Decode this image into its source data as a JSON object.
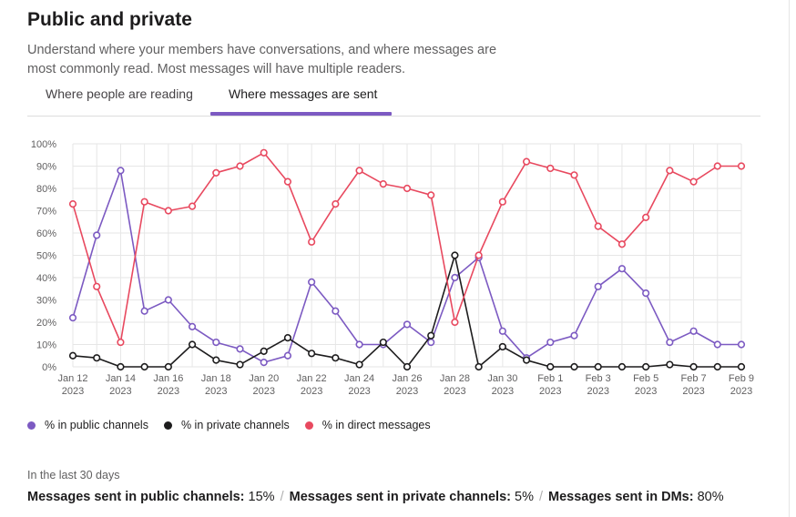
{
  "header": {
    "title": "Public and private",
    "subtitle": "Understand where your members have conversations, and where messages are most commonly read. Most messages will have multiple readers."
  },
  "tabs": [
    {
      "label": "Where people are reading",
      "active": false
    },
    {
      "label": "Where messages are sent",
      "active": true
    }
  ],
  "colors": {
    "public": "#7c5ac2",
    "private": "#1d1c1d",
    "dm": "#e8495f",
    "accent": "#7c5ac2"
  },
  "chart_data": {
    "type": "line",
    "x": [
      "Jan 12 2023",
      "Jan 13 2023",
      "Jan 14 2023",
      "Jan 15 2023",
      "Jan 16 2023",
      "Jan 17 2023",
      "Jan 18 2023",
      "Jan 19 2023",
      "Jan 20 2023",
      "Jan 21 2023",
      "Jan 22 2023",
      "Jan 23 2023",
      "Jan 24 2023",
      "Jan 25 2023",
      "Jan 26 2023",
      "Jan 27 2023",
      "Jan 28 2023",
      "Jan 29 2023",
      "Jan 30 2023",
      "Jan 31 2023",
      "Feb 1 2023",
      "Feb 2 2023",
      "Feb 3 2023",
      "Feb 4 2023",
      "Feb 5 2023",
      "Feb 6 2023",
      "Feb 7 2023",
      "Feb 8 2023",
      "Feb 9 2023"
    ],
    "tick_labels": [
      [
        "Jan 12",
        "2023"
      ],
      [
        "Jan 14",
        "2023"
      ],
      [
        "Jan 16",
        "2023"
      ],
      [
        "Jan 18",
        "2023"
      ],
      [
        "Jan 20",
        "2023"
      ],
      [
        "Jan 22",
        "2023"
      ],
      [
        "Jan 24",
        "2023"
      ],
      [
        "Jan 26",
        "2023"
      ],
      [
        "Jan 28",
        "2023"
      ],
      [
        "Jan 30",
        "2023"
      ],
      [
        "Feb 1",
        "2023"
      ],
      [
        "Feb 3",
        "2023"
      ],
      [
        "Feb 5",
        "2023"
      ],
      [
        "Feb 7",
        "2023"
      ],
      [
        "Feb 9",
        "2023"
      ]
    ],
    "y_ticks": [
      "0%",
      "10%",
      "20%",
      "30%",
      "40%",
      "50%",
      "60%",
      "70%",
      "80%",
      "90%",
      "100%"
    ],
    "ylim": [
      0,
      100
    ],
    "grid": true,
    "legend_position": "bottom-left",
    "series": [
      {
        "name": "% in public channels",
        "key": "public",
        "values": [
          22,
          59,
          88,
          25,
          30,
          18,
          11,
          8,
          2,
          5,
          38,
          25,
          10,
          10,
          19,
          11,
          40,
          49,
          16,
          4,
          11,
          14,
          36,
          44,
          33,
          11,
          16,
          10,
          10
        ]
      },
      {
        "name": "% in private channels",
        "key": "private",
        "values": [
          5,
          4,
          0,
          0,
          0,
          10,
          3,
          1,
          7,
          13,
          6,
          4,
          1,
          11,
          0,
          14,
          50,
          0,
          9,
          3,
          0,
          0,
          0,
          0,
          0,
          1,
          0,
          0,
          0
        ]
      },
      {
        "name": "% in direct messages",
        "key": "dm",
        "values": [
          73,
          36,
          11,
          74,
          70,
          72,
          87,
          90,
          96,
          83,
          56,
          73,
          88,
          82,
          80,
          77,
          20,
          50,
          74,
          92,
          89,
          86,
          63,
          55,
          67,
          88,
          83,
          90,
          90
        ]
      }
    ]
  },
  "summary": {
    "period": "In the last 30 days",
    "items": [
      {
        "label": "Messages sent in public channels:",
        "value": "15%"
      },
      {
        "label": "Messages sent in private channels:",
        "value": "5%"
      },
      {
        "label": "Messages sent in DMs:",
        "value": "80%"
      }
    ]
  }
}
